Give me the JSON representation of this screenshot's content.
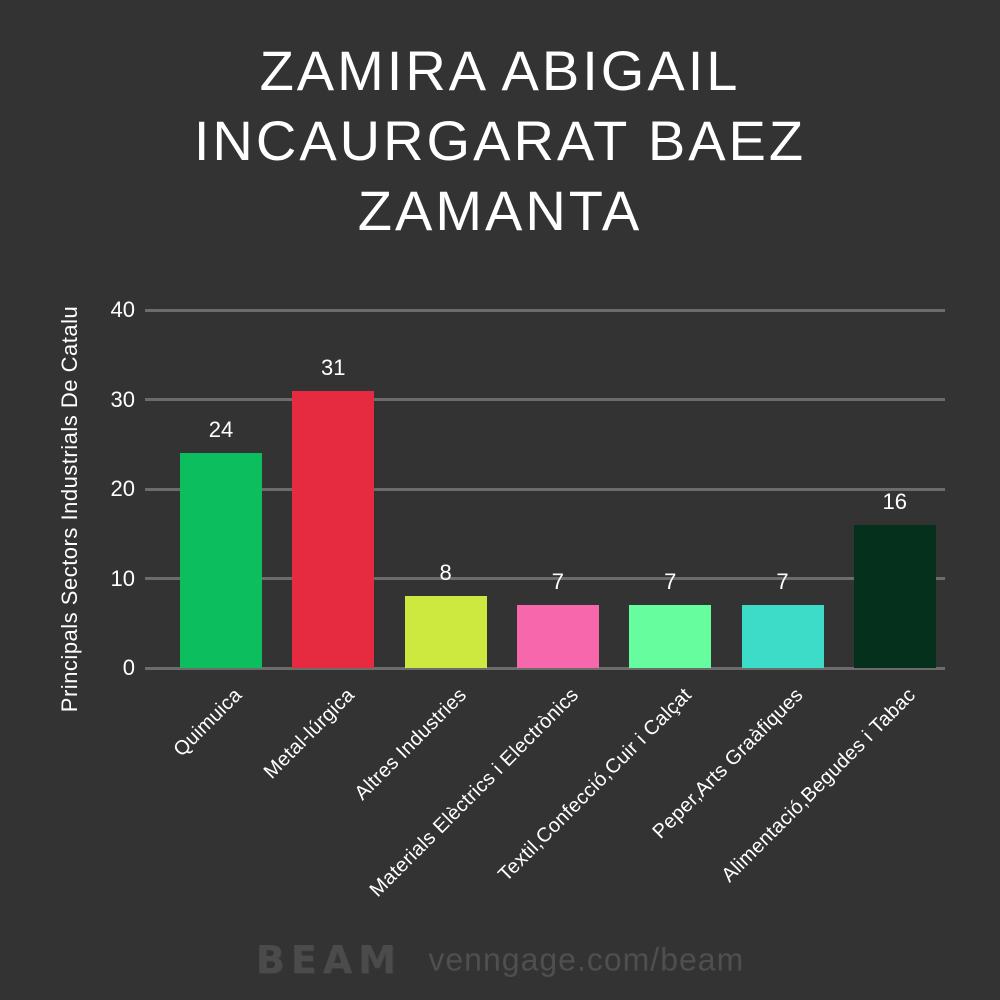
{
  "title": {
    "full": "ZAMIRA ABIGAIL INCAURGARAT BAEZ ZAMANTA",
    "lines": [
      "ZAMIRA ABIGAIL",
      "INCAURGARAT BAEZ",
      "ZAMANTA"
    ]
  },
  "chart_data": {
    "type": "bar",
    "title": "ZAMIRA ABIGAIL INCAURGARAT BAEZ ZAMANTA",
    "xlabel": "",
    "ylabel": "Principals Sectors Industrials De Catalu",
    "categories": [
      "Quimuica",
      "Metal-lúrgica",
      "Altres Industries",
      "Materials Elèctrics i Electrònics",
      "Textil,Confecció,Cuir i Calçat",
      "Peper,Arts Graàfiques",
      "Alimentació,Begudes i Tabac"
    ],
    "values": [
      24,
      31,
      8,
      7,
      7,
      7,
      16
    ],
    "bar_colors": [
      "#0cbe5d",
      "#e62a40",
      "#cde83f",
      "#f767ac",
      "#66fd9f",
      "#3ddcc9",
      "#05301b"
    ],
    "yticks": [
      0,
      10,
      20,
      30,
      40
    ],
    "ylim": [
      0,
      40
    ],
    "grid": true,
    "legend": false,
    "colors": {
      "background": "#333333",
      "gridline": "#6c6c6c",
      "text": "#ffffff"
    }
  },
  "footer": {
    "logo": "BEAM",
    "url": "venngage.com/beam"
  }
}
